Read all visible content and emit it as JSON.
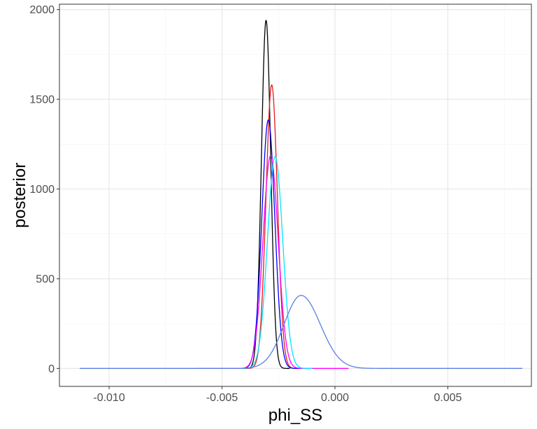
{
  "chart_data": {
    "type": "line",
    "title": "",
    "xlabel": "phi_SS",
    "ylabel": "posterior",
    "xlim": [
      -0.0122,
      0.0087
    ],
    "ylim": [
      -100,
      2030
    ],
    "x_ticks": [
      -0.01,
      -0.005,
      0.0,
      0.005
    ],
    "x_tick_labels": [
      "-0.010",
      "-0.005",
      "0.000",
      "0.005"
    ],
    "y_ticks": [
      0,
      500,
      1000,
      1500,
      2000
    ],
    "y_tick_labels": [
      "0",
      "500",
      "1000",
      "1500",
      "2000"
    ],
    "grid": true,
    "legend": "none",
    "series": [
      {
        "color": "#000000",
        "shape": "normal",
        "mean": -0.00305,
        "peak": 1940,
        "x_range": [
          -0.004,
          -0.002
        ]
      },
      {
        "color": "#e41a1c",
        "shape": "normal",
        "mean": -0.0028,
        "peak": 1580,
        "x_range": [
          -0.004,
          -0.0015
        ]
      },
      {
        "color": "#0000ff",
        "shape": "normal",
        "mean": -0.00295,
        "peak": 1385,
        "x_range": [
          -0.0042,
          -0.0015
        ]
      },
      {
        "color": "#ff00ff",
        "shape": "normal",
        "mean": -0.00285,
        "peak": 1185,
        "x_range": [
          -0.0061,
          0.0006
        ]
      },
      {
        "color": "#00e5ff",
        "shape": "normal",
        "mean": -0.00265,
        "peak": 1180,
        "x_range": [
          -0.0042,
          -0.001
        ]
      },
      {
        "color": "#5a7fe0",
        "shape": "skewed",
        "mode": -0.0015,
        "peak": 407,
        "sd_left": 0.00075,
        "sd_right": 0.00085,
        "x_range": [
          -0.0113,
          0.0083
        ]
      }
    ]
  }
}
